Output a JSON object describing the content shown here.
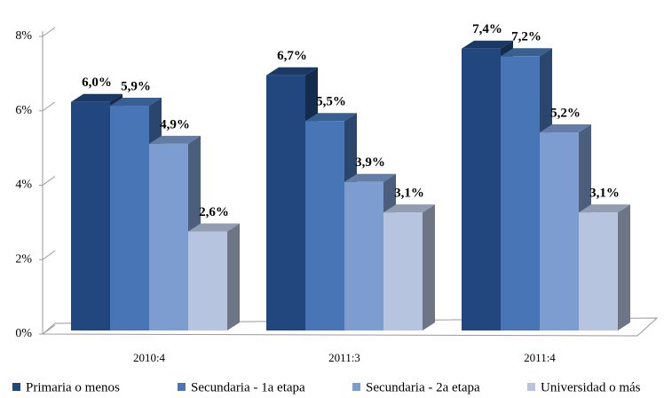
{
  "chart_data": {
    "type": "bar3d",
    "categories": [
      "2010:4",
      "2011:3",
      "2011:4"
    ],
    "series": [
      {
        "name": "Primaria o menos",
        "color": "#21477e",
        "values": [
          6.0,
          6.7,
          7.4
        ],
        "value_labels": [
          "6,0%",
          "6,7%",
          "7,4%"
        ]
      },
      {
        "name": "Secundaria - 1a etapa",
        "color": "#4775b5",
        "values": [
          5.9,
          5.5,
          7.2
        ],
        "value_labels": [
          "5,9%",
          "5,5%",
          "7,2%"
        ]
      },
      {
        "name": "Secundaria - 2a etapa",
        "color": "#7d9ccf",
        "values": [
          4.9,
          3.9,
          5.2
        ],
        "value_labels": [
          "4,9%",
          "3,9%",
          "5,2%"
        ]
      },
      {
        "name": "Universidad o más",
        "color": "#b7c4df",
        "values": [
          2.6,
          3.1,
          3.1
        ],
        "value_labels": [
          "2,6%",
          "3,1%",
          "3,1%"
        ]
      }
    ],
    "ylim": [
      0,
      8
    ],
    "yticks": [
      {
        "value": 0,
        "label": "0%"
      },
      {
        "value": 2,
        "label": "2%"
      },
      {
        "value": 4,
        "label": "4%"
      },
      {
        "value": 6,
        "label": "6%"
      },
      {
        "value": 8,
        "label": "8%"
      }
    ]
  }
}
